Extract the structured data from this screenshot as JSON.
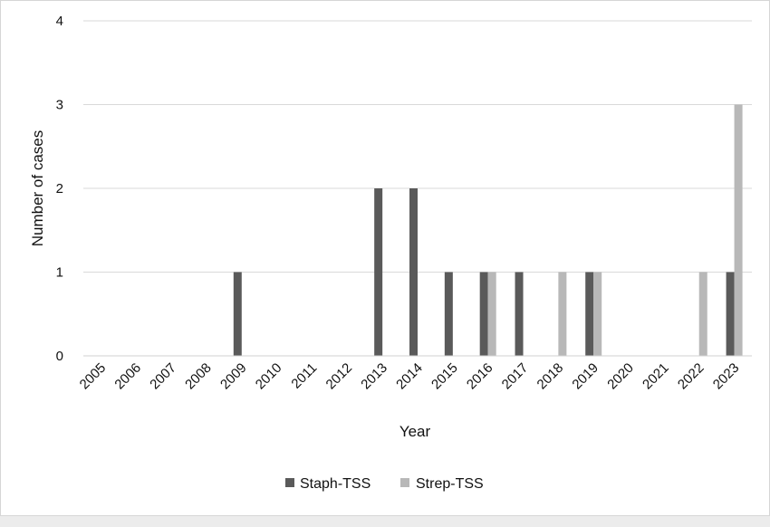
{
  "chart_data": {
    "type": "bar",
    "xlabel": "Year",
    "ylabel": "Number of cases",
    "ylim": [
      0,
      4
    ],
    "yticks": [
      0,
      1,
      2,
      3,
      4
    ],
    "grid": "horizontal",
    "legend_position": "bottom",
    "categories": [
      "2005",
      "2006",
      "2007",
      "2008",
      "2009",
      "2010",
      "2011",
      "2012",
      "2013",
      "2014",
      "2015",
      "2016",
      "2017",
      "2018",
      "2019",
      "2020",
      "2021",
      "2022",
      "2023"
    ],
    "series": [
      {
        "name": "Staph-TSS",
        "color": "#5a5a5a",
        "values": [
          0,
          0,
          0,
          0,
          1,
          0,
          0,
          0,
          2,
          2,
          1,
          1,
          1,
          0,
          1,
          0,
          0,
          0,
          1
        ]
      },
      {
        "name": "Strep-TSS",
        "color": "#b8b8b8",
        "values": [
          0,
          0,
          0,
          0,
          0,
          0,
          0,
          0,
          0,
          0,
          0,
          1,
          0,
          1,
          1,
          0,
          0,
          1,
          3
        ]
      }
    ]
  }
}
